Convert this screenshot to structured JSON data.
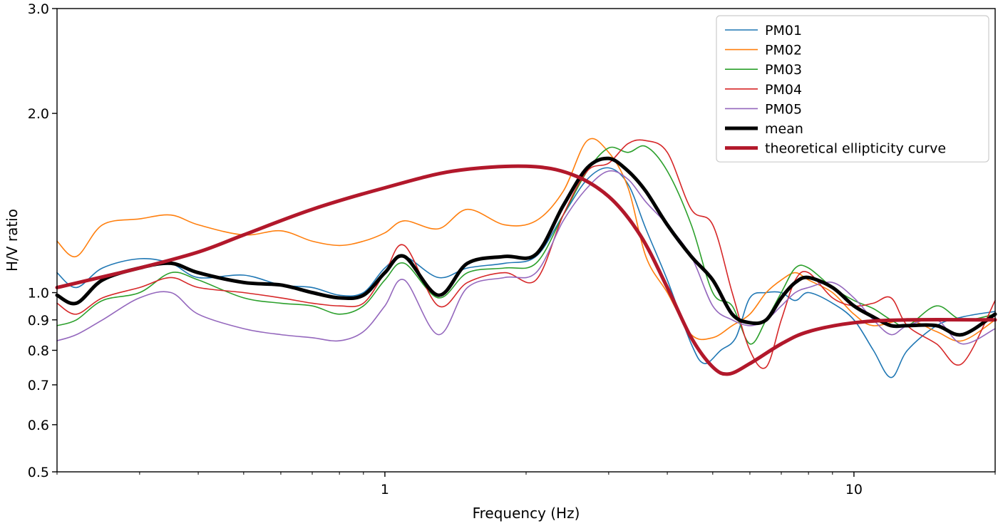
{
  "chart_data": {
    "type": "line",
    "xlabel": "Frequency (Hz)",
    "ylabel": "H/V ratio",
    "xscale": "log",
    "yscale": "log",
    "xlim": [
      0.2,
      20
    ],
    "ylim": [
      0.5,
      3.0
    ],
    "x_major_ticks": [
      {
        "value": 1,
        "label": "1"
      },
      {
        "value": 10,
        "label": "10"
      }
    ],
    "y_ticks": [
      {
        "value": 0.5,
        "label": "0.5"
      },
      {
        "value": 0.6,
        "label": "0.6"
      },
      {
        "value": 0.7,
        "label": "0.7"
      },
      {
        "value": 0.8,
        "label": "0.8"
      },
      {
        "value": 0.9,
        "label": "0.9"
      },
      {
        "value": 1.0,
        "label": "1.0"
      },
      {
        "value": 2.0,
        "label": "2.0"
      },
      {
        "value": 3.0,
        "label": "3.0"
      }
    ],
    "grid": false,
    "legend_position": "top-right",
    "series": [
      {
        "name": "PM01",
        "color": "#1f77b4",
        "width": 1.6,
        "points": [
          [
            0.2,
            1.08
          ],
          [
            0.22,
            1.02
          ],
          [
            0.25,
            1.1
          ],
          [
            0.3,
            1.14
          ],
          [
            0.35,
            1.12
          ],
          [
            0.4,
            1.06
          ],
          [
            0.5,
            1.07
          ],
          [
            0.6,
            1.03
          ],
          [
            0.7,
            1.02
          ],
          [
            0.8,
            0.99
          ],
          [
            0.9,
            1.0
          ],
          [
            1.0,
            1.1
          ],
          [
            1.1,
            1.15
          ],
          [
            1.3,
            1.06
          ],
          [
            1.5,
            1.1
          ],
          [
            1.8,
            1.12
          ],
          [
            2.1,
            1.15
          ],
          [
            2.4,
            1.35
          ],
          [
            2.7,
            1.55
          ],
          [
            3.0,
            1.62
          ],
          [
            3.3,
            1.52
          ],
          [
            3.6,
            1.28
          ],
          [
            4.0,
            1.05
          ],
          [
            4.5,
            0.82
          ],
          [
            4.8,
            0.76
          ],
          [
            5.2,
            0.8
          ],
          [
            5.6,
            0.84
          ],
          [
            6.0,
            0.98
          ],
          [
            6.5,
            1.0
          ],
          [
            7.0,
            1.0
          ],
          [
            7.5,
            0.97
          ],
          [
            8.0,
            1.0
          ],
          [
            9.0,
            0.96
          ],
          [
            10.0,
            0.9
          ],
          [
            11.0,
            0.8
          ],
          [
            12.0,
            0.72
          ],
          [
            13.0,
            0.8
          ],
          [
            15.0,
            0.88
          ],
          [
            17.0,
            0.91
          ],
          [
            20.0,
            0.93
          ]
        ]
      },
      {
        "name": "PM02",
        "color": "#ff7f0e",
        "width": 1.6,
        "points": [
          [
            0.2,
            1.22
          ],
          [
            0.22,
            1.15
          ],
          [
            0.25,
            1.3
          ],
          [
            0.3,
            1.33
          ],
          [
            0.35,
            1.35
          ],
          [
            0.4,
            1.3
          ],
          [
            0.5,
            1.25
          ],
          [
            0.6,
            1.27
          ],
          [
            0.7,
            1.22
          ],
          [
            0.8,
            1.2
          ],
          [
            0.9,
            1.22
          ],
          [
            1.0,
            1.26
          ],
          [
            1.1,
            1.32
          ],
          [
            1.3,
            1.28
          ],
          [
            1.5,
            1.38
          ],
          [
            1.8,
            1.3
          ],
          [
            2.1,
            1.32
          ],
          [
            2.4,
            1.48
          ],
          [
            2.7,
            1.8
          ],
          [
            3.0,
            1.72
          ],
          [
            3.3,
            1.5
          ],
          [
            3.6,
            1.15
          ],
          [
            4.0,
            1.0
          ],
          [
            4.5,
            0.85
          ],
          [
            5.0,
            0.84
          ],
          [
            5.5,
            0.88
          ],
          [
            6.0,
            0.92
          ],
          [
            6.5,
            1.0
          ],
          [
            7.0,
            1.05
          ],
          [
            7.5,
            1.08
          ],
          [
            8.0,
            1.05
          ],
          [
            9.0,
            1.0
          ],
          [
            10.0,
            0.92
          ],
          [
            11.0,
            0.88
          ],
          [
            13.0,
            0.9
          ],
          [
            15.0,
            0.86
          ],
          [
            17.0,
            0.83
          ],
          [
            20.0,
            0.9
          ]
        ]
      },
      {
        "name": "PM03",
        "color": "#2ca02c",
        "width": 1.6,
        "points": [
          [
            0.2,
            0.88
          ],
          [
            0.22,
            0.9
          ],
          [
            0.25,
            0.97
          ],
          [
            0.3,
            1.0
          ],
          [
            0.35,
            1.08
          ],
          [
            0.4,
            1.05
          ],
          [
            0.5,
            0.98
          ],
          [
            0.6,
            0.96
          ],
          [
            0.7,
            0.95
          ],
          [
            0.8,
            0.92
          ],
          [
            0.9,
            0.95
          ],
          [
            1.0,
            1.05
          ],
          [
            1.1,
            1.12
          ],
          [
            1.3,
            0.98
          ],
          [
            1.5,
            1.08
          ],
          [
            1.8,
            1.1
          ],
          [
            2.1,
            1.12
          ],
          [
            2.4,
            1.35
          ],
          [
            2.7,
            1.6
          ],
          [
            3.0,
            1.75
          ],
          [
            3.3,
            1.72
          ],
          [
            3.6,
            1.76
          ],
          [
            4.0,
            1.6
          ],
          [
            4.5,
            1.3
          ],
          [
            5.0,
            1.0
          ],
          [
            5.5,
            0.95
          ],
          [
            6.0,
            0.82
          ],
          [
            6.5,
            0.9
          ],
          [
            7.0,
            1.0
          ],
          [
            7.5,
            1.1
          ],
          [
            8.0,
            1.1
          ],
          [
            9.0,
            1.02
          ],
          [
            10.0,
            0.97
          ],
          [
            11.0,
            0.94
          ],
          [
            12.0,
            0.9
          ],
          [
            13.0,
            0.88
          ],
          [
            15.0,
            0.95
          ],
          [
            17.0,
            0.9
          ],
          [
            20.0,
            0.92
          ]
        ]
      },
      {
        "name": "PM04",
        "color": "#d62728",
        "width": 1.6,
        "points": [
          [
            0.2,
            0.96
          ],
          [
            0.22,
            0.92
          ],
          [
            0.25,
            0.98
          ],
          [
            0.3,
            1.02
          ],
          [
            0.35,
            1.06
          ],
          [
            0.4,
            1.02
          ],
          [
            0.5,
            1.0
          ],
          [
            0.6,
            0.98
          ],
          [
            0.7,
            0.96
          ],
          [
            0.8,
            0.95
          ],
          [
            0.9,
            0.96
          ],
          [
            1.0,
            1.08
          ],
          [
            1.1,
            1.2
          ],
          [
            1.3,
            0.95
          ],
          [
            1.5,
            1.04
          ],
          [
            1.8,
            1.08
          ],
          [
            2.1,
            1.05
          ],
          [
            2.4,
            1.35
          ],
          [
            2.7,
            1.6
          ],
          [
            3.0,
            1.65
          ],
          [
            3.3,
            1.78
          ],
          [
            3.6,
            1.8
          ],
          [
            4.0,
            1.72
          ],
          [
            4.5,
            1.38
          ],
          [
            5.0,
            1.3
          ],
          [
            5.5,
            1.0
          ],
          [
            6.0,
            0.8
          ],
          [
            6.5,
            0.75
          ],
          [
            7.0,
            0.9
          ],
          [
            7.5,
            1.05
          ],
          [
            8.0,
            1.08
          ],
          [
            9.0,
            0.98
          ],
          [
            10.0,
            0.95
          ],
          [
            11.0,
            0.96
          ],
          [
            12.0,
            0.98
          ],
          [
            13.0,
            0.88
          ],
          [
            15.0,
            0.82
          ],
          [
            17.0,
            0.76
          ],
          [
            20.0,
            0.97
          ]
        ]
      },
      {
        "name": "PM05",
        "color": "#9467bd",
        "width": 1.6,
        "points": [
          [
            0.2,
            0.83
          ],
          [
            0.22,
            0.85
          ],
          [
            0.25,
            0.9
          ],
          [
            0.3,
            0.98
          ],
          [
            0.35,
            1.0
          ],
          [
            0.4,
            0.92
          ],
          [
            0.5,
            0.87
          ],
          [
            0.6,
            0.85
          ],
          [
            0.7,
            0.84
          ],
          [
            0.8,
            0.83
          ],
          [
            0.9,
            0.86
          ],
          [
            1.0,
            0.95
          ],
          [
            1.1,
            1.05
          ],
          [
            1.3,
            0.85
          ],
          [
            1.5,
            1.02
          ],
          [
            1.8,
            1.06
          ],
          [
            2.1,
            1.08
          ],
          [
            2.4,
            1.32
          ],
          [
            2.7,
            1.5
          ],
          [
            3.0,
            1.6
          ],
          [
            3.3,
            1.55
          ],
          [
            3.6,
            1.42
          ],
          [
            4.0,
            1.3
          ],
          [
            4.5,
            1.15
          ],
          [
            5.0,
            0.95
          ],
          [
            5.5,
            0.9
          ],
          [
            6.0,
            0.88
          ],
          [
            6.5,
            0.9
          ],
          [
            7.0,
            0.95
          ],
          [
            7.5,
            1.0
          ],
          [
            8.0,
            1.02
          ],
          [
            9.0,
            1.04
          ],
          [
            10.0,
            0.98
          ],
          [
            11.0,
            0.9
          ],
          [
            12.0,
            0.85
          ],
          [
            13.0,
            0.88
          ],
          [
            15.0,
            0.9
          ],
          [
            17.0,
            0.82
          ],
          [
            20.0,
            0.87
          ]
        ]
      },
      {
        "name": "mean",
        "color": "#000000",
        "width": 5,
        "points": [
          [
            0.2,
            0.99
          ],
          [
            0.22,
            0.96
          ],
          [
            0.25,
            1.05
          ],
          [
            0.3,
            1.1
          ],
          [
            0.35,
            1.12
          ],
          [
            0.4,
            1.08
          ],
          [
            0.5,
            1.04
          ],
          [
            0.6,
            1.03
          ],
          [
            0.7,
            1.0
          ],
          [
            0.8,
            0.98
          ],
          [
            0.9,
            0.99
          ],
          [
            1.0,
            1.08
          ],
          [
            1.1,
            1.15
          ],
          [
            1.3,
            0.99
          ],
          [
            1.5,
            1.12
          ],
          [
            1.8,
            1.15
          ],
          [
            2.1,
            1.16
          ],
          [
            2.4,
            1.4
          ],
          [
            2.7,
            1.62
          ],
          [
            3.0,
            1.68
          ],
          [
            3.3,
            1.6
          ],
          [
            3.6,
            1.48
          ],
          [
            4.0,
            1.3
          ],
          [
            4.5,
            1.15
          ],
          [
            5.0,
            1.05
          ],
          [
            5.5,
            0.92
          ],
          [
            6.0,
            0.89
          ],
          [
            6.5,
            0.9
          ],
          [
            7.0,
            0.98
          ],
          [
            7.5,
            1.04
          ],
          [
            8.0,
            1.06
          ],
          [
            9.0,
            1.02
          ],
          [
            10.0,
            0.95
          ],
          [
            11.0,
            0.91
          ],
          [
            12.0,
            0.88
          ],
          [
            13.0,
            0.88
          ],
          [
            15.0,
            0.88
          ],
          [
            17.0,
            0.85
          ],
          [
            20.0,
            0.92
          ]
        ]
      },
      {
        "name": "theoretical ellipticity curve",
        "color": "#b2182b",
        "width": 5,
        "points": [
          [
            0.2,
            1.02
          ],
          [
            0.3,
            1.1
          ],
          [
            0.4,
            1.17
          ],
          [
            0.5,
            1.25
          ],
          [
            0.7,
            1.38
          ],
          [
            1.0,
            1.5
          ],
          [
            1.4,
            1.6
          ],
          [
            2.0,
            1.63
          ],
          [
            2.5,
            1.58
          ],
          [
            3.0,
            1.45
          ],
          [
            3.5,
            1.25
          ],
          [
            4.0,
            1.02
          ],
          [
            4.5,
            0.84
          ],
          [
            5.0,
            0.75
          ],
          [
            5.4,
            0.73
          ],
          [
            6.0,
            0.76
          ],
          [
            7.0,
            0.82
          ],
          [
            8.0,
            0.86
          ],
          [
            10.0,
            0.89
          ],
          [
            13.0,
            0.9
          ],
          [
            20.0,
            0.9
          ]
        ]
      }
    ]
  }
}
